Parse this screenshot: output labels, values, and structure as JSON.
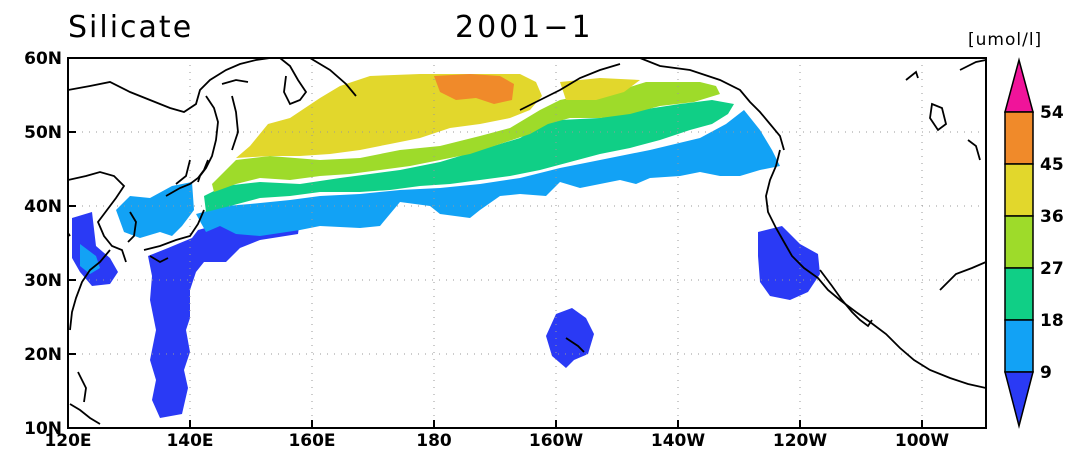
{
  "title": "Silicate",
  "period": "2001−1",
  "unit": "[umol/l]",
  "colors": {
    "lt9": "#2a3af5",
    "9_18": "#12a2f5",
    "18_27": "#10cf86",
    "27_36": "#9edb2a",
    "36_45": "#e2d72c",
    "45_54": "#f08a2a",
    "gt54": "#f0149a"
  },
  "chart_data": {
    "type": "heatmap",
    "variable": "Silicate",
    "lon_ticks": [
      "120E",
      "140E",
      "160E",
      "180",
      "160W",
      "140W",
      "120W",
      "100W"
    ],
    "lat_ticks": [
      "10N",
      "20N",
      "30N",
      "40N",
      "50N",
      "60N"
    ],
    "lon_range": [
      120,
      270
    ],
    "lat_range": [
      10,
      60
    ],
    "colorbar": {
      "levels": [
        "9",
        "18",
        "27",
        "36",
        "45",
        "54"
      ],
      "open_ends": true
    },
    "grid": "dotted"
  }
}
